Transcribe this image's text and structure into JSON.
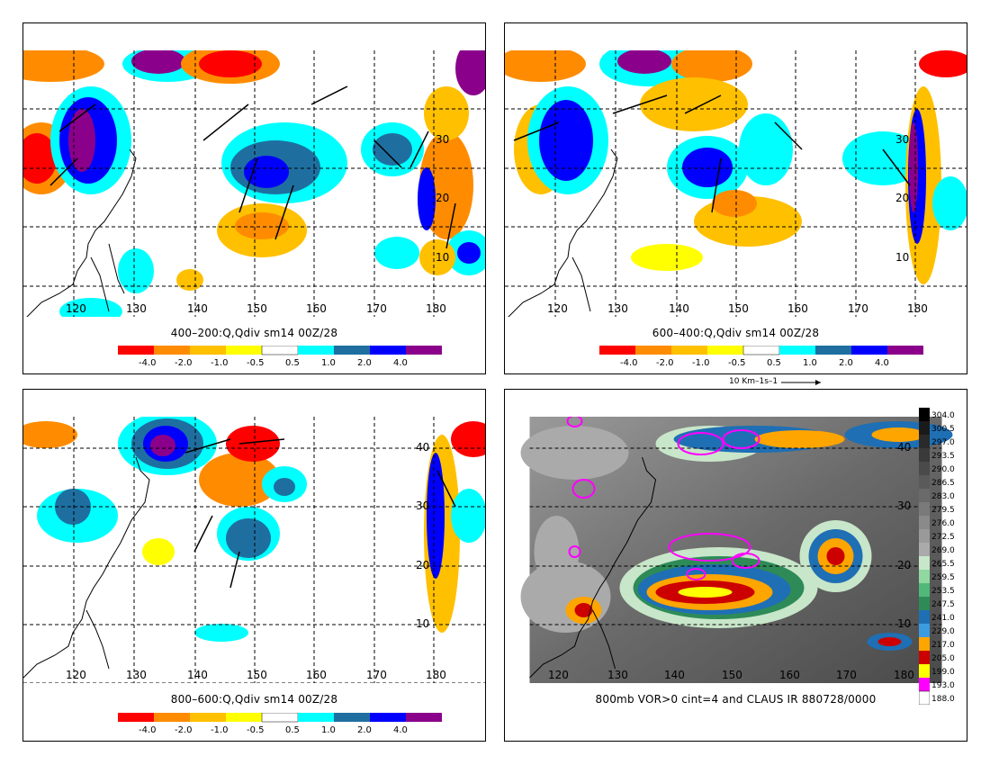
{
  "panels": [
    {
      "title": "400–200:Q,Qdiv sm14 00Z/28",
      "lon_labels": [
        "120",
        "130",
        "140",
        "150",
        "160",
        "170",
        "180"
      ],
      "lat_labels": [
        "30",
        "20",
        "10"
      ],
      "colorbar_labels": [
        "-4.0",
        "-2.0",
        "-1.0",
        "-0.5",
        "0.5",
        "1.0",
        "2.0",
        "4.0"
      ]
    },
    {
      "title": "600–400:Q,Qdiv sm14 00Z/28",
      "lon_labels": [
        "120",
        "130",
        "140",
        "150",
        "160",
        "170",
        "180"
      ],
      "lat_labels": [
        "30",
        "20",
        "10"
      ],
      "colorbar_labels": [
        "-4.0",
        "-2.0",
        "-1.0",
        "-0.5",
        "0.5",
        "1.0",
        "2.0",
        "4.0"
      ],
      "vector_scale": "10 Km–1s–1"
    },
    {
      "title": "800–600:Q,Qdiv sm14 00Z/28",
      "lon_labels": [
        "120",
        "130",
        "140",
        "150",
        "160",
        "170",
        "180"
      ],
      "lat_labels": [
        "40",
        "30",
        "20",
        "10"
      ],
      "colorbar_labels": [
        "-4.0",
        "-2.0",
        "-1.0",
        "-0.5",
        "0.5",
        "1.0",
        "2.0",
        "4.0"
      ]
    },
    {
      "title": "800mb VOR>0 cint=4 and CLAUS IR 880728/0000",
      "lon_labels": [
        "120",
        "130",
        "140",
        "150",
        "160",
        "170",
        "180"
      ],
      "lat_labels": [
        "40",
        "30",
        "20",
        "10"
      ],
      "colorbar_labels": [
        "304.0",
        "300.5",
        "297.0",
        "293.5",
        "290.0",
        "286.5",
        "283.0",
        "279.5",
        "276.0",
        "272.5",
        "269.0",
        "265.5",
        "259.5",
        "253.5",
        "247.5",
        "241.0",
        "229.0",
        "217.0",
        "205.0",
        "199.0",
        "193.0",
        "188.0"
      ]
    }
  ],
  "colors": {
    "qdiv_palette": [
      "#ff0000",
      "#ff8c00",
      "#ffc000",
      "#ffff00",
      "#ffffff",
      "#00ffff",
      "#1e6fa0",
      "#0000ff",
      "#8b008b"
    ],
    "ir_palette": [
      "#000000",
      "#1a1a1a",
      "#2a2a2a",
      "#3a3a3a",
      "#4a4a4a",
      "#5a5a5a",
      "#6a6a6a",
      "#7a7a7a",
      "#8a8a8a",
      "#9a9a9a",
      "#aaaaaa",
      "#c8e6c9",
      "#90d8a0",
      "#50b878",
      "#2e8b57",
      "#1f6fb4",
      "#3b9be0",
      "#ffa500",
      "#cc0000",
      "#ffff00",
      "#ff00ff",
      "#ffffff"
    ],
    "vorticity_contour": "#ff00ff"
  }
}
